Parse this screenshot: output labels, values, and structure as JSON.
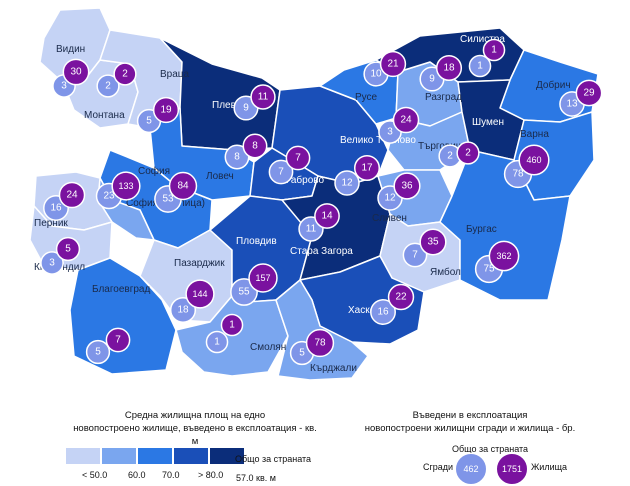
{
  "colors": {
    "c1": "#c5d3f5",
    "c2": "#7aa6ef",
    "c3": "#2b78e4",
    "c4": "#1a4fb8",
    "c5": "#0b2d7a",
    "buildings": "#7f95e8",
    "dwellings": "#7a129f"
  },
  "regions": [
    {
      "name": "Видин",
      "cls": 1,
      "buildings": 3,
      "dwellings": 30
    },
    {
      "name": "Монтана",
      "cls": 1,
      "buildings": 2,
      "dwellings": 2
    },
    {
      "name": "Враца",
      "cls": 1,
      "buildings": 5,
      "dwellings": 19
    },
    {
      "name": "Плевен",
      "cls": 5,
      "buildings": 9,
      "dwellings": 11
    },
    {
      "name": "Ловеч",
      "cls": 3,
      "buildings": 8,
      "dwellings": 8
    },
    {
      "name": "Велико Търново",
      "cls": 4,
      "buildings": 12,
      "dwellings": 17
    },
    {
      "name": "Габрово",
      "cls": 4,
      "buildings": 7,
      "dwellings": 7
    },
    {
      "name": "Русе",
      "cls": 3,
      "buildings": 10,
      "dwellings": 21
    },
    {
      "name": "Разград",
      "cls": 2,
      "buildings": 9,
      "dwellings": 18
    },
    {
      "name": "Силистра",
      "cls": 5,
      "buildings": 1,
      "dwellings": 1
    },
    {
      "name": "Добрич",
      "cls": 3,
      "buildings": 13,
      "dwellings": 29
    },
    {
      "name": "Търговище",
      "cls": 2,
      "buildings": 3,
      "dwellings": 24
    },
    {
      "name": "Шумен",
      "cls": 5,
      "buildings": 2,
      "dwellings": 2
    },
    {
      "name": "Варна",
      "cls": 3,
      "buildings": 78,
      "dwellings": 460
    },
    {
      "name": "София",
      "cls": 3,
      "buildings": 53,
      "dwellings": 84
    },
    {
      "name": "София (столица)",
      "cls": 2,
      "buildings": 23,
      "dwellings": 133
    },
    {
      "name": "Перник",
      "cls": 1,
      "buildings": 16,
      "dwellings": 24
    },
    {
      "name": "Кюстендил",
      "cls": 1,
      "buildings": 3,
      "dwellings": 5
    },
    {
      "name": "Благоевград",
      "cls": 3,
      "buildings": 5,
      "dwellings": 7
    },
    {
      "name": "Пазарджик",
      "cls": 1,
      "buildings": 18,
      "dwellings": 144
    },
    {
      "name": "Пловдив",
      "cls": 4,
      "buildings": 55,
      "dwellings": 157
    },
    {
      "name": "Стара Загора",
      "cls": 5,
      "buildings": 11,
      "dwellings": 14
    },
    {
      "name": "Сливен",
      "cls": 2,
      "buildings": 12,
      "dwellings": 36
    },
    {
      "name": "Ямбол",
      "cls": 1,
      "buildings": 7,
      "dwellings": 35
    },
    {
      "name": "Бургас",
      "cls": 3,
      "buildings": 75,
      "dwellings": 362
    },
    {
      "name": "Хасково",
      "cls": 4,
      "buildings": 16,
      "dwellings": 22
    },
    {
      "name": "Смолян",
      "cls": 2,
      "buildings": 1,
      "dwellings": 1
    },
    {
      "name": "Кърджали",
      "cls": 2,
      "buildings": 5,
      "dwellings": 78
    }
  ],
  "legend": {
    "left_title_1": "Средна жилищна площ на едно",
    "left_title_2": "новопостроено жилище, въведено в експлоатация - кв. м",
    "right_title_1": "Въведени в експлоатация",
    "right_title_2": "новопостроени жилищни сгради и жилища - бр.",
    "scale_labels": [
      "< 50.0",
      "60.0",
      "70.0",
      "> 80.0"
    ],
    "total_label": "Общо за страната",
    "total_value": "57.0  кв. м",
    "country_total_title": "Общо за страната",
    "buildings_label": "Сгради",
    "dwellings_label": "Жилища",
    "buildings_total": "462",
    "dwellings_total": "1751"
  }
}
